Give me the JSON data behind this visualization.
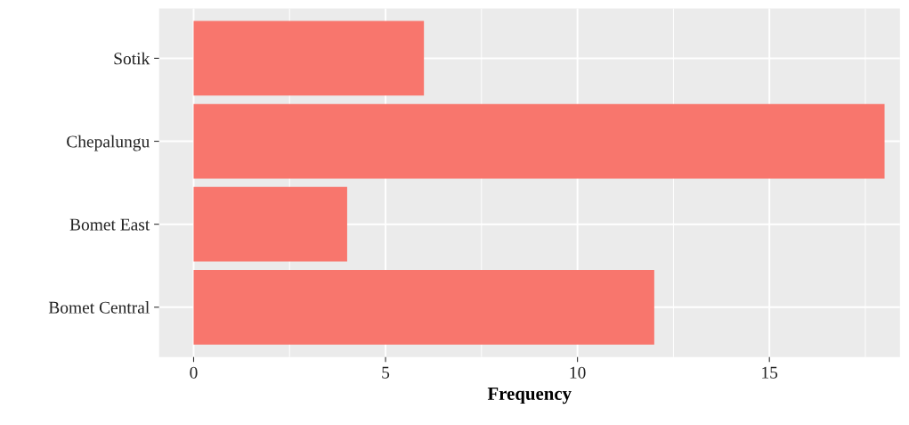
{
  "chart_data": {
    "type": "bar",
    "orientation": "horizontal",
    "xlabel": "Frequency",
    "categories": [
      "Sotik",
      "Chepalungu",
      "Bomet East",
      "Bomet Central"
    ],
    "values": [
      6,
      18,
      4,
      12
    ],
    "color": "#f8766d",
    "xlim": [
      -0.9,
      18.4
    ],
    "xticks": [
      0,
      {
        "value": 2.5,
        "label": null
      },
      5,
      {
        "value": 7.5,
        "label": null
      },
      10,
      {
        "value": 12.5,
        "label": null
      },
      15,
      {
        "value": 17.5,
        "label": null
      }
    ],
    "grid": true
  }
}
